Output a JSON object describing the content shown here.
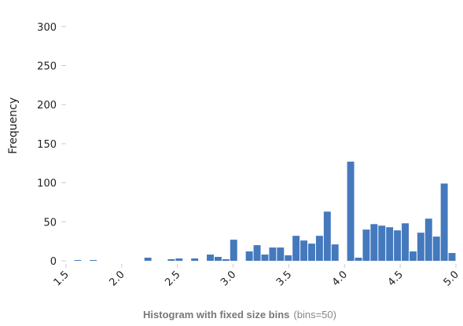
{
  "chart_data": {
    "type": "bar",
    "title": "Histogram with fixed size bins",
    "subtitle": "(bins=50)",
    "xlabel": "",
    "ylabel": "Frequency",
    "bar_color": "#4479bd",
    "xlim": [
      1.5,
      5.0
    ],
    "ylim": [
      0,
      330
    ],
    "x_ticks": [
      1.5,
      2.0,
      2.5,
      3.0,
      3.5,
      4.0,
      4.5,
      5.0
    ],
    "x_tick_labels": [
      "1.5",
      "2.0",
      "2.5",
      "3.0",
      "3.5",
      "4.0",
      "4.5",
      "5.0"
    ],
    "y_ticks": [
      0,
      50,
      100,
      150,
      200,
      250,
      300
    ],
    "y_tick_labels": [
      "0",
      "50",
      "100",
      "150",
      "200",
      "250",
      "300"
    ],
    "grid": false,
    "legend": "none",
    "bin_width": 0.07,
    "bin_starts": [
      1.5,
      1.57,
      1.64,
      1.71,
      1.78,
      1.85,
      1.92,
      1.99,
      2.06,
      2.13,
      2.2,
      2.27,
      2.34,
      2.41,
      2.48,
      2.55,
      2.62,
      2.69,
      2.76,
      2.83,
      2.9,
      2.97,
      3.04,
      3.11,
      3.18,
      3.25,
      3.32,
      3.39,
      3.46,
      3.53,
      3.6,
      3.67,
      3.74,
      3.81,
      3.88,
      3.95,
      4.02,
      4.09,
      4.16,
      4.23,
      4.3,
      4.37,
      4.44,
      4.51,
      4.58,
      4.65,
      4.72,
      4.79,
      4.86,
      4.93
    ],
    "values": [
      0,
      1,
      0,
      1,
      0,
      0,
      0,
      0,
      0,
      0,
      4,
      0,
      0,
      2,
      3,
      0,
      3,
      0,
      8,
      5,
      2,
      27,
      0,
      12,
      20,
      8,
      17,
      17,
      7,
      32,
      26,
      22,
      32,
      63,
      21,
      0,
      127,
      4,
      40,
      47,
      45,
      43,
      39,
      48,
      12,
      36,
      54,
      31,
      99,
      10
    ]
  }
}
